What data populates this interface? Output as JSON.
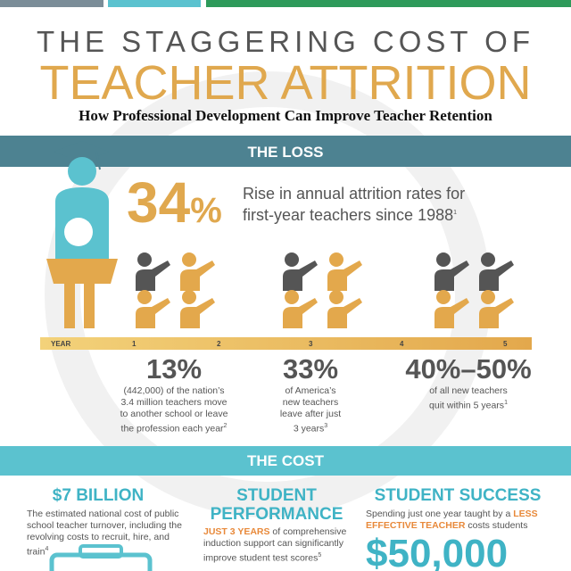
{
  "header": {
    "title_line1": "THE STAGGERING COST OF",
    "title_line2": "TEACHER ATTRITION",
    "subtitle": "How Professional Development Can Improve Teacher Retention"
  },
  "loss": {
    "heading": "THE LOSS",
    "stat_number": "34",
    "stat_unit": "%",
    "stat_text": "Rise in annual attrition rates for first-year teachers since 1988",
    "stat_note": "1",
    "timeline": {
      "label": "YEAR",
      "years": [
        "1",
        "2",
        "3",
        "4",
        "5"
      ]
    },
    "stats": [
      {
        "value": "13%",
        "text": "(442,000) of the nation’s 3.4 million teachers move to another school or leave the profession each year",
        "note": "2"
      },
      {
        "value": "33%",
        "text": "of America’s new teachers leave after just 3 years",
        "note": "3"
      },
      {
        "value": "40%–50%",
        "text": "of all new teachers quit within 5 years",
        "note": "1"
      }
    ]
  },
  "cost": {
    "heading": "THE COST",
    "columns": [
      {
        "heading": "$7 BILLION",
        "text": "The estimated national cost of public school teacher turnover, including the revolving costs to recruit, hire, and train",
        "note": "4"
      },
      {
        "heading": "STUDENT PERFORMANCE",
        "highlight": "JUST 3 YEARS",
        "text": " of comprehensive induction support can significantly improve student test scores",
        "note": "5"
      },
      {
        "heading": "STUDENT SUCCESS",
        "text": "Spending just one year taught by a ",
        "highlight": "LESS EFFECTIVE TEACHER",
        "text_after": " costs students",
        "amount": "$50,000"
      }
    ]
  }
}
